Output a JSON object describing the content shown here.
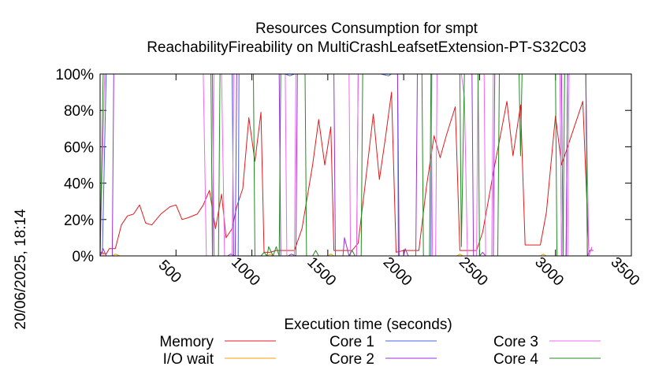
{
  "chart_data": {
    "type": "line",
    "title": "Resources Consumption for smpt",
    "subtitle": "ReachabilityFireability on MultiCrashLeafsetExtension-PT-S32C03",
    "xlabel": "Execution time (seconds)",
    "ylabel": "",
    "side_label": "20/06/2025, 18:14",
    "xlim": [
      0,
      3500
    ],
    "ylim": [
      0,
      100
    ],
    "x_ticks": [
      500,
      1000,
      1500,
      2000,
      2500,
      3000,
      3500
    ],
    "x_tick_labels": [
      "500",
      "1000",
      "1500",
      "2000",
      "2500",
      "3000",
      "3500"
    ],
    "y_ticks": [
      0,
      20,
      40,
      60,
      80,
      100
    ],
    "y_tick_labels": [
      "0%",
      "20%",
      "40%",
      "60%",
      "80%",
      "100%"
    ],
    "grid": false,
    "legend_position": "bottom",
    "series": [
      {
        "name": "Memory",
        "color": "#e41a1c",
        "points": [
          [
            0,
            2
          ],
          [
            40,
            1
          ],
          [
            60,
            4
          ],
          [
            100,
            4
          ],
          [
            140,
            17
          ],
          [
            180,
            22
          ],
          [
            220,
            23
          ],
          [
            260,
            28
          ],
          [
            300,
            18
          ],
          [
            340,
            17
          ],
          [
            400,
            23
          ],
          [
            460,
            27
          ],
          [
            500,
            28
          ],
          [
            540,
            20
          ],
          [
            580,
            21
          ],
          [
            640,
            23
          ],
          [
            680,
            28
          ],
          [
            720,
            36
          ],
          [
            760,
            15
          ],
          [
            800,
            34
          ],
          [
            830,
            10
          ],
          [
            870,
            15
          ],
          [
            900,
            27
          ],
          [
            940,
            37
          ],
          [
            980,
            76
          ],
          [
            1020,
            52
          ],
          [
            1060,
            79
          ],
          [
            1080,
            2
          ],
          [
            1120,
            2
          ],
          [
            1160,
            3
          ],
          [
            1200,
            3
          ],
          [
            1250,
            3
          ],
          [
            1280,
            3
          ],
          [
            1330,
            15
          ],
          [
            1400,
            50
          ],
          [
            1440,
            75
          ],
          [
            1480,
            50
          ],
          [
            1520,
            71
          ],
          [
            1540,
            3
          ],
          [
            1600,
            3
          ],
          [
            1660,
            3
          ],
          [
            1700,
            7
          ],
          [
            1750,
            42
          ],
          [
            1800,
            78
          ],
          [
            1840,
            42
          ],
          [
            1880,
            65
          ],
          [
            1920,
            90
          ],
          [
            1950,
            2
          ],
          [
            2000,
            3
          ],
          [
            2050,
            3
          ],
          [
            2100,
            3
          ],
          [
            2150,
            38
          ],
          [
            2200,
            66
          ],
          [
            2240,
            54
          ],
          [
            2280,
            66
          ],
          [
            2340,
            82
          ],
          [
            2370,
            3
          ],
          [
            2400,
            3
          ],
          [
            2440,
            3
          ],
          [
            2480,
            3
          ],
          [
            2520,
            13
          ],
          [
            2600,
            50
          ],
          [
            2680,
            85
          ],
          [
            2720,
            55
          ],
          [
            2770,
            83
          ],
          [
            2800,
            6
          ],
          [
            2860,
            6
          ],
          [
            2900,
            6
          ],
          [
            2940,
            24
          ],
          [
            3000,
            77
          ],
          [
            3040,
            50
          ],
          [
            3100,
            65
          ],
          [
            3180,
            85
          ],
          [
            3220,
            2
          ],
          [
            3240,
            4
          ]
        ]
      },
      {
        "name": "I/O wait",
        "color": "#ff9e00",
        "points": [
          [
            0,
            0
          ],
          [
            10,
            2
          ],
          [
            25,
            0
          ],
          [
            80,
            0
          ],
          [
            100,
            1
          ],
          [
            130,
            0
          ],
          [
            900,
            0
          ],
          [
            1100,
            0
          ],
          [
            1120,
            1
          ],
          [
            1140,
            0
          ],
          [
            1500,
            0
          ],
          [
            1520,
            1
          ],
          [
            1540,
            0
          ],
          [
            2350,
            0
          ],
          [
            2370,
            1
          ],
          [
            2390,
            0
          ],
          [
            2900,
            0
          ],
          [
            2920,
            1
          ],
          [
            2940,
            0
          ],
          [
            3250,
            0
          ]
        ]
      },
      {
        "name": "Core 1",
        "color": "#4466dd",
        "points": [
          [
            0,
            0
          ],
          [
            15,
            2
          ],
          [
            40,
            100
          ],
          [
            870,
            100
          ],
          [
            880,
            0
          ],
          [
            910,
            0
          ],
          [
            915,
            100
          ],
          [
            1220,
            100
          ],
          [
            1250,
            99
          ],
          [
            1280,
            100
          ],
          [
            1850,
            100
          ],
          [
            1900,
            99
          ],
          [
            1920,
            100
          ],
          [
            1960,
            100
          ],
          [
            1965,
            0
          ],
          [
            2180,
            0
          ],
          [
            2185,
            100
          ],
          [
            3030,
            100
          ],
          [
            3040,
            0
          ],
          [
            3070,
            0
          ],
          [
            3080,
            100
          ],
          [
            3250,
            100
          ]
        ]
      },
      {
        "name": "Core 2",
        "color": "#9b30d9",
        "points": [
          [
            0,
            0
          ],
          [
            20,
            4
          ],
          [
            40,
            0
          ],
          [
            80,
            0
          ],
          [
            90,
            100
          ],
          [
            740,
            100
          ],
          [
            750,
            0
          ],
          [
            840,
            0
          ],
          [
            860,
            1
          ],
          [
            890,
            0
          ],
          [
            900,
            100
          ],
          [
            1180,
            100
          ],
          [
            1190,
            0
          ],
          [
            1240,
            0
          ],
          [
            1260,
            1
          ],
          [
            1290,
            0
          ],
          [
            1300,
            100
          ],
          [
            1540,
            100
          ],
          [
            1550,
            0
          ],
          [
            1600,
            0
          ],
          [
            1610,
            10
          ],
          [
            1640,
            0
          ],
          [
            1690,
            0
          ],
          [
            1700,
            100
          ],
          [
            1960,
            100
          ],
          [
            1970,
            0
          ],
          [
            2000,
            0
          ],
          [
            2010,
            4
          ],
          [
            2030,
            0
          ],
          [
            2080,
            0
          ],
          [
            2090,
            100
          ],
          [
            2450,
            100
          ],
          [
            2460,
            0
          ],
          [
            2500,
            0
          ],
          [
            2520,
            2
          ],
          [
            2540,
            0
          ],
          [
            2590,
            0
          ],
          [
            2600,
            100
          ],
          [
            3040,
            100
          ],
          [
            3050,
            0
          ],
          [
            3070,
            0
          ],
          [
            3080,
            100
          ],
          [
            3200,
            100
          ],
          [
            3210,
            0
          ],
          [
            3225,
            3
          ],
          [
            3250,
            3
          ]
        ]
      },
      {
        "name": "Core 3",
        "color": "#f068f0",
        "points": [
          [
            0,
            0
          ],
          [
            30,
            100
          ],
          [
            680,
            100
          ],
          [
            700,
            0
          ],
          [
            740,
            0
          ],
          [
            750,
            100
          ],
          [
            800,
            100
          ],
          [
            820,
            0
          ],
          [
            870,
            0
          ],
          [
            880,
            100
          ],
          [
            1220,
            100
          ],
          [
            1230,
            0
          ],
          [
            1280,
            0
          ],
          [
            1290,
            100
          ],
          [
            1640,
            100
          ],
          [
            1650,
            0
          ],
          [
            1690,
            0
          ],
          [
            1700,
            100
          ],
          [
            2180,
            100
          ],
          [
            2190,
            0
          ],
          [
            2210,
            0
          ],
          [
            2220,
            100
          ],
          [
            2380,
            100
          ],
          [
            2400,
            87
          ],
          [
            2420,
            0
          ],
          [
            2480,
            0
          ],
          [
            2490,
            100
          ],
          [
            2530,
            100
          ],
          [
            2540,
            0
          ],
          [
            2580,
            0
          ],
          [
            2590,
            100
          ],
          [
            3030,
            100
          ],
          [
            3040,
            0
          ],
          [
            3080,
            0
          ],
          [
            3090,
            100
          ],
          [
            3200,
            100
          ],
          [
            3220,
            0
          ],
          [
            3240,
            5
          ]
        ]
      },
      {
        "name": "Core 4",
        "color": "#228b22",
        "points": [
          [
            0,
            0
          ],
          [
            20,
            100
          ],
          [
            730,
            100
          ],
          [
            740,
            0
          ],
          [
            780,
            0
          ],
          [
            790,
            100
          ],
          [
            1010,
            100
          ],
          [
            1020,
            0
          ],
          [
            1060,
            0
          ],
          [
            1080,
            2
          ],
          [
            1100,
            0
          ],
          [
            1110,
            5
          ],
          [
            1140,
            0
          ],
          [
            1160,
            5
          ],
          [
            1180,
            0
          ],
          [
            1190,
            100
          ],
          [
            1350,
            100
          ],
          [
            1360,
            0
          ],
          [
            1400,
            0
          ],
          [
            1420,
            3
          ],
          [
            1440,
            0
          ],
          [
            1640,
            0
          ],
          [
            1660,
            3
          ],
          [
            1680,
            0
          ],
          [
            1720,
            0
          ],
          [
            1730,
            100
          ],
          [
            2120,
            100
          ],
          [
            2130,
            0
          ],
          [
            2170,
            0
          ],
          [
            2180,
            100
          ],
          [
            2370,
            100
          ],
          [
            2380,
            5
          ],
          [
            2400,
            100
          ],
          [
            2490,
            100
          ],
          [
            2500,
            0
          ],
          [
            2620,
            0
          ],
          [
            2630,
            100
          ],
          [
            2760,
            100
          ],
          [
            2770,
            55
          ],
          [
            2780,
            100
          ],
          [
            3000,
            100
          ],
          [
            3010,
            0
          ],
          [
            3050,
            0
          ],
          [
            3060,
            100
          ],
          [
            3200,
            100
          ],
          [
            3210,
            0
          ],
          [
            3240,
            0
          ]
        ]
      }
    ]
  }
}
